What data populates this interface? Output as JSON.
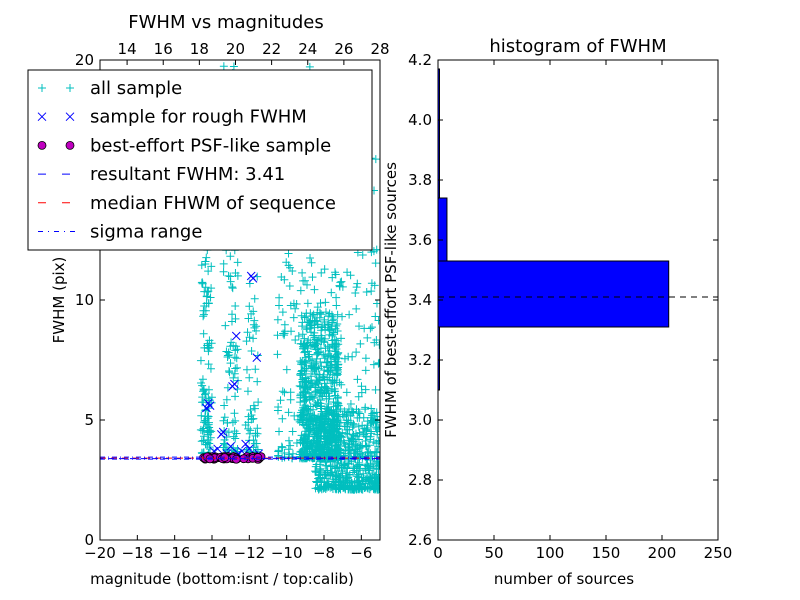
{
  "chart_data": [
    {
      "type": "scatter",
      "title": "FWHM vs magnitudes",
      "xlabel": "magnitude (bottom:isnt / top:calib)",
      "ylabel": "FWHM (pix)",
      "xlim": [
        -20,
        -5
      ],
      "ylim": [
        0,
        20
      ],
      "top_xlim": [
        12.5,
        28
      ],
      "x_ticks": [
        "−20",
        "−18",
        "−16",
        "−14",
        "−12",
        "−10",
        "−8",
        "−6"
      ],
      "x_tick_values": [
        -20,
        -18,
        -16,
        -14,
        -12,
        -10,
        -8,
        -6
      ],
      "y_ticks": [
        "0",
        "5",
        "10"
      ],
      "y_tick_values": [
        0,
        5,
        10
      ],
      "top_x_ticks": [
        "14",
        "16",
        "18",
        "20",
        "22",
        "24",
        "26",
        "28"
      ],
      "top_x_tick_values": [
        14,
        16,
        18,
        20,
        22,
        24,
        26,
        28
      ],
      "top_y_tick": "20",
      "legend_position": "upper-left",
      "colors": {
        "all": "#00bfbf",
        "rough": "#0000ff",
        "best_fill": "#bf00bf",
        "resultant": "#0000ff",
        "median": "#ff0000",
        "sigma": "#0000ff"
      },
      "legend": [
        {
          "label": "all sample",
          "marker": "plus",
          "color": "#00bfbf"
        },
        {
          "label": "sample for rough FWHM",
          "marker": "cross",
          "color": "#0000ff"
        },
        {
          "label": "best-effort PSF-like sample",
          "marker": "circle",
          "color": "#bf00bf"
        },
        {
          "label": "resultant FWHM: 3.41",
          "marker": "dashed",
          "color": "#0000ff"
        },
        {
          "label": "median FHWM of sequence",
          "marker": "dashed",
          "color": "#ff0000"
        },
        {
          "label": "sigma range",
          "marker": "dashdot",
          "color": "#0000ff"
        }
      ],
      "resultant_fwhm": 3.41,
      "all_sample_clusters": [
        {
          "x_range": [
            -14.6,
            -14.0
          ],
          "y_range": [
            3.4,
            12.5
          ],
          "count": 110
        },
        {
          "x_range": [
            -13.4,
            -12.6
          ],
          "y_range": [
            3.4,
            20.0
          ],
          "count": 120
        },
        {
          "x_range": [
            -12.2,
            -11.5
          ],
          "y_range": [
            3.5,
            11.0
          ],
          "count": 60
        },
        {
          "x_range": [
            -10.5,
            -7.0
          ],
          "y_range": [
            3.4,
            20.0
          ],
          "count": 260
        },
        {
          "x_range": [
            -9.3,
            -7.2
          ],
          "y_range": [
            3.4,
            9.5
          ],
          "count": 650
        },
        {
          "x_range": [
            -8.5,
            -5.0
          ],
          "y_range": [
            2.1,
            5.5
          ],
          "count": 500
        },
        {
          "x_range": [
            -7.5,
            -5.0
          ],
          "y_range": [
            3.4,
            16.0
          ],
          "count": 120
        }
      ],
      "rough_sample": [
        [
          -14.3,
          5.5
        ],
        [
          -14.2,
          5.7
        ],
        [
          -14.1,
          5.6
        ],
        [
          -13.5,
          4.4
        ],
        [
          -13.4,
          4.5
        ],
        [
          -12.9,
          6.4
        ],
        [
          -12.8,
          6.5
        ],
        [
          -12.7,
          8.5
        ],
        [
          -11.9,
          11.0
        ],
        [
          -11.8,
          10.9
        ],
        [
          -11.6,
          7.6
        ],
        [
          -13.9,
          3.7
        ],
        [
          -13.7,
          3.8
        ],
        [
          -13.0,
          3.9
        ],
        [
          -12.6,
          3.6
        ],
        [
          -12.4,
          3.7
        ],
        [
          -12.0,
          3.8
        ],
        [
          -11.5,
          3.6
        ],
        [
          -13.2,
          3.6
        ],
        [
          -12.2,
          4.0
        ]
      ],
      "best_sample_x_range": [
        -14.5,
        -11.3
      ],
      "best_sample_y_range": [
        3.36,
        3.48
      ],
      "best_sample_count": 60
    },
    {
      "type": "bar",
      "orientation": "horizontal",
      "title": "histogram of FWHM",
      "xlabel": "number of sources",
      "ylabel": "FWHM of best-effort PSF-like sources",
      "xlim": [
        0,
        250
      ],
      "ylim": [
        2.6,
        4.2
      ],
      "x_ticks": [
        "0",
        "50",
        "100",
        "150",
        "200",
        "250"
      ],
      "x_tick_values": [
        0,
        50,
        100,
        150,
        200,
        250
      ],
      "y_ticks": [
        "2.6",
        "2.8",
        "3.0",
        "3.2",
        "3.4",
        "3.6",
        "3.8",
        "4.0",
        "4.2"
      ],
      "y_tick_values": [
        2.6,
        2.8,
        3.0,
        3.2,
        3.4,
        3.6,
        3.8,
        4.0,
        4.2
      ],
      "bar_color": "#0000ff",
      "bins": [
        {
          "low": 3.1,
          "high": 3.31,
          "count": 1
        },
        {
          "low": 3.31,
          "high": 3.53,
          "count": 206
        },
        {
          "low": 3.53,
          "high": 3.74,
          "count": 8
        },
        {
          "low": 3.74,
          "high": 4.17,
          "count": 1
        }
      ],
      "reference_line": 3.41
    }
  ]
}
